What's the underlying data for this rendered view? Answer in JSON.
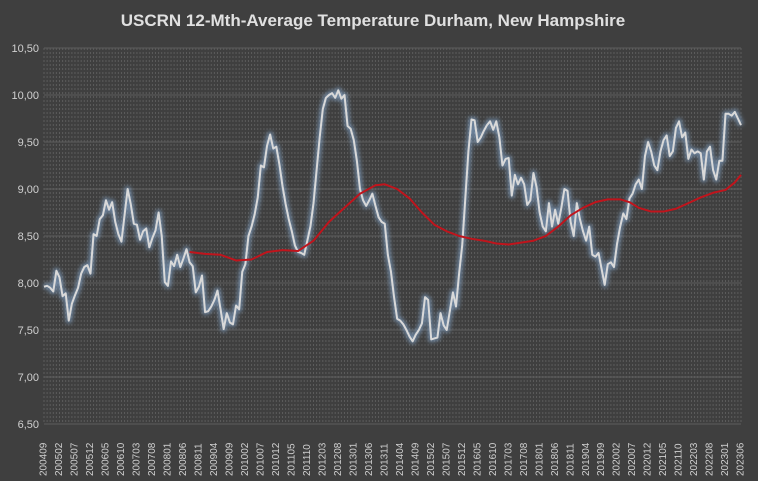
{
  "chart_data": {
    "type": "line",
    "title": "USCRN 12-Mth-Average Temperature Durham, New Hampshire",
    "xlabel": "",
    "ylabel": "",
    "ylim": [
      6.5,
      10.5
    ],
    "yticks": [
      "6,50",
      "7,00",
      "7,50",
      "8,00",
      "8,50",
      "9,00",
      "9,50",
      "10,00",
      "10,50"
    ],
    "ytick_values": [
      6.5,
      7.0,
      7.5,
      8.0,
      8.5,
      9.0,
      9.5,
      10.0,
      10.5
    ],
    "xticks": [
      "200409",
      "200502",
      "200507",
      "200512",
      "200605",
      "200610",
      "200703",
      "200708",
      "200801",
      "200806",
      "200811",
      "200904",
      "200909",
      "201002",
      "201007",
      "201012",
      "201105",
      "201110",
      "201203",
      "201208",
      "201301",
      "201306",
      "201311",
      "201404",
      "201409",
      "201502",
      "201507",
      "201512",
      "201605",
      "201610",
      "201703",
      "201708",
      "201801",
      "201806",
      "201811",
      "201904",
      "201909",
      "202002",
      "202007",
      "202012",
      "202105",
      "202110",
      "202203",
      "202208",
      "202301",
      "202306"
    ],
    "grid": true,
    "legend": "none",
    "colors": {
      "background": "#3f3f3f",
      "series_12mth": "#d9d9d9",
      "series_trend": "#c0141c",
      "glow": "#8fb8e6"
    },
    "series": [
      {
        "points": [
          [
            0,
            7.96
          ],
          [
            1,
            7.97
          ],
          [
            2,
            7.95
          ],
          [
            3,
            7.91
          ],
          [
            4,
            8.13
          ],
          [
            5,
            8.06
          ],
          [
            6,
            7.86
          ],
          [
            7,
            7.89
          ],
          [
            8,
            7.6
          ],
          [
            9,
            7.78
          ],
          [
            10,
            7.87
          ],
          [
            11,
            7.95
          ],
          [
            12,
            8.1
          ],
          [
            13,
            8.17
          ],
          [
            14,
            8.19
          ],
          [
            15,
            8.1
          ],
          [
            16,
            8.52
          ],
          [
            17,
            8.5
          ],
          [
            18,
            8.68
          ],
          [
            19,
            8.72
          ],
          [
            20,
            8.88
          ],
          [
            21,
            8.78
          ],
          [
            22,
            8.86
          ],
          [
            23,
            8.65
          ],
          [
            24,
            8.52
          ],
          [
            25,
            8.44
          ],
          [
            26,
            8.72
          ],
          [
            27,
            9.0
          ],
          [
            28,
            8.84
          ],
          [
            29,
            8.63
          ],
          [
            30,
            8.62
          ],
          [
            31,
            8.46
          ],
          [
            32,
            8.55
          ],
          [
            33,
            8.58
          ],
          [
            34,
            8.38
          ],
          [
            35,
            8.48
          ],
          [
            36,
            8.56
          ],
          [
            37,
            8.75
          ],
          [
            38,
            8.5
          ],
          [
            39,
            8.01
          ],
          [
            40,
            7.97
          ],
          [
            41,
            8.23
          ],
          [
            42,
            8.18
          ],
          [
            43,
            8.3
          ],
          [
            44,
            8.17
          ],
          [
            45,
            8.26
          ],
          [
            46,
            8.36
          ],
          [
            47,
            8.22
          ],
          [
            48,
            8.18
          ],
          [
            49,
            7.9
          ],
          [
            50,
            7.96
          ],
          [
            51,
            8.08
          ],
          [
            52,
            7.69
          ],
          [
            53,
            7.7
          ],
          [
            54,
            7.75
          ],
          [
            55,
            7.82
          ],
          [
            56,
            7.92
          ],
          [
            57,
            7.72
          ],
          [
            58,
            7.51
          ],
          [
            59,
            7.68
          ],
          [
            60,
            7.58
          ],
          [
            61,
            7.56
          ],
          [
            62,
            7.76
          ],
          [
            63,
            7.72
          ],
          [
            64,
            8.12
          ],
          [
            65,
            8.2
          ],
          [
            66,
            8.5
          ],
          [
            67,
            8.6
          ],
          [
            68,
            8.73
          ],
          [
            69,
            8.91
          ],
          [
            70,
            9.25
          ],
          [
            71,
            9.23
          ],
          [
            72,
            9.46
          ],
          [
            73,
            9.58
          ],
          [
            74,
            9.43
          ],
          [
            75,
            9.45
          ],
          [
            76,
            9.26
          ],
          [
            77,
            9.03
          ],
          [
            78,
            8.84
          ],
          [
            79,
            8.68
          ],
          [
            80,
            8.55
          ],
          [
            81,
            8.4
          ],
          [
            82,
            8.33
          ],
          [
            83,
            8.32
          ],
          [
            84,
            8.3
          ],
          [
            85,
            8.45
          ],
          [
            86,
            8.6
          ],
          [
            87,
            8.85
          ],
          [
            88,
            9.2
          ],
          [
            89,
            9.55
          ],
          [
            90,
            9.85
          ],
          [
            91,
            9.97
          ],
          [
            92,
            10.0
          ],
          [
            93,
            10.02
          ],
          [
            94,
            9.97
          ],
          [
            95,
            10.05
          ],
          [
            96,
            9.96
          ],
          [
            97,
            10.0
          ],
          [
            98,
            9.67
          ],
          [
            99,
            9.64
          ],
          [
            100,
            9.52
          ],
          [
            101,
            9.3
          ],
          [
            102,
            9.0
          ],
          [
            103,
            8.88
          ],
          [
            104,
            8.82
          ],
          [
            105,
            8.88
          ],
          [
            106,
            8.95
          ],
          [
            107,
            8.82
          ],
          [
            108,
            8.7
          ],
          [
            109,
            8.65
          ],
          [
            110,
            8.63
          ],
          [
            111,
            8.3
          ],
          [
            112,
            8.12
          ],
          [
            113,
            7.85
          ],
          [
            114,
            7.62
          ],
          [
            115,
            7.6
          ],
          [
            116,
            7.56
          ],
          [
            117,
            7.5
          ],
          [
            118,
            7.43
          ],
          [
            119,
            7.38
          ],
          [
            120,
            7.45
          ],
          [
            121,
            7.5
          ],
          [
            122,
            7.57
          ],
          [
            123,
            7.85
          ],
          [
            124,
            7.82
          ],
          [
            125,
            7.4
          ],
          [
            126,
            7.41
          ],
          [
            127,
            7.42
          ],
          [
            128,
            7.68
          ],
          [
            129,
            7.55
          ],
          [
            130,
            7.5
          ],
          [
            131,
            7.7
          ],
          [
            132,
            7.9
          ],
          [
            133,
            7.75
          ],
          [
            134,
            8.1
          ],
          [
            135,
            8.4
          ],
          [
            136,
            8.9
          ],
          [
            137,
            9.4
          ],
          [
            138,
            9.74
          ],
          [
            139,
            9.73
          ],
          [
            140,
            9.5
          ],
          [
            141,
            9.55
          ],
          [
            142,
            9.62
          ],
          [
            143,
            9.68
          ],
          [
            144,
            9.72
          ],
          [
            145,
            9.63
          ],
          [
            146,
            9.72
          ],
          [
            147,
            9.55
          ],
          [
            148,
            9.25
          ],
          [
            149,
            9.32
          ],
          [
            150,
            9.33
          ],
          [
            151,
            8.93
          ],
          [
            152,
            9.15
          ],
          [
            153,
            9.05
          ],
          [
            154,
            9.12
          ],
          [
            155,
            9.05
          ],
          [
            156,
            8.83
          ],
          [
            157,
            8.88
          ],
          [
            158,
            9.17
          ],
          [
            159,
            9.02
          ],
          [
            160,
            8.75
          ],
          [
            161,
            8.6
          ],
          [
            162,
            8.55
          ],
          [
            163,
            8.85
          ],
          [
            164,
            8.6
          ],
          [
            165,
            8.78
          ],
          [
            166,
            8.63
          ],
          [
            167,
            8.8
          ],
          [
            168,
            9.0
          ],
          [
            169,
            8.98
          ],
          [
            170,
            8.65
          ],
          [
            171,
            8.5
          ],
          [
            172,
            8.85
          ],
          [
            173,
            8.68
          ],
          [
            174,
            8.55
          ],
          [
            175,
            8.45
          ],
          [
            176,
            8.6
          ],
          [
            177,
            8.3
          ],
          [
            178,
            8.28
          ],
          [
            179,
            8.32
          ],
          [
            180,
            8.15
          ],
          [
            181,
            7.98
          ],
          [
            182,
            8.2
          ],
          [
            183,
            8.22
          ],
          [
            184,
            8.17
          ],
          [
            185,
            8.42
          ],
          [
            186,
            8.6
          ],
          [
            187,
            8.74
          ],
          [
            188,
            8.68
          ],
          [
            189,
            8.9
          ],
          [
            190,
            8.95
          ],
          [
            191,
            9.05
          ],
          [
            192,
            9.1
          ],
          [
            193,
            9.0
          ],
          [
            194,
            9.35
          ],
          [
            195,
            9.5
          ],
          [
            196,
            9.4
          ],
          [
            197,
            9.25
          ],
          [
            198,
            9.2
          ],
          [
            199,
            9.4
          ],
          [
            200,
            9.52
          ],
          [
            201,
            9.57
          ],
          [
            202,
            9.35
          ],
          [
            203,
            9.4
          ],
          [
            204,
            9.65
          ],
          [
            205,
            9.72
          ],
          [
            206,
            9.55
          ],
          [
            207,
            9.6
          ],
          [
            208,
            9.32
          ],
          [
            209,
            9.42
          ],
          [
            210,
            9.38
          ],
          [
            211,
            9.4
          ],
          [
            212,
            9.38
          ],
          [
            213,
            9.1
          ],
          [
            214,
            9.4
          ],
          [
            215,
            9.45
          ],
          [
            216,
            9.2
          ],
          [
            217,
            9.1
          ],
          [
            218,
            9.3
          ],
          [
            219,
            9.3
          ],
          [
            220,
            9.8
          ],
          [
            221,
            9.8
          ],
          [
            222,
            9.78
          ],
          [
            223,
            9.82
          ],
          [
            224,
            9.75
          ],
          [
            225,
            9.68
          ]
        ]
      },
      {
        "points": [
          [
            47,
            8.33
          ],
          [
            52,
            8.31
          ],
          [
            57,
            8.3
          ],
          [
            62,
            8.24
          ],
          [
            67,
            8.25
          ],
          [
            72,
            8.33
          ],
          [
            77,
            8.35
          ],
          [
            82,
            8.34
          ],
          [
            87,
            8.45
          ],
          [
            92,
            8.65
          ],
          [
            97,
            8.8
          ],
          [
            102,
            8.95
          ],
          [
            107,
            9.04
          ],
          [
            110,
            9.05
          ],
          [
            114,
            9.0
          ],
          [
            118,
            8.9
          ],
          [
            122,
            8.75
          ],
          [
            126,
            8.62
          ],
          [
            130,
            8.55
          ],
          [
            134,
            8.5
          ],
          [
            138,
            8.47
          ],
          [
            142,
            8.45
          ],
          [
            146,
            8.42
          ],
          [
            150,
            8.41
          ],
          [
            154,
            8.43
          ],
          [
            158,
            8.45
          ],
          [
            162,
            8.5
          ],
          [
            166,
            8.6
          ],
          [
            170,
            8.72
          ],
          [
            174,
            8.8
          ],
          [
            178,
            8.86
          ],
          [
            182,
            8.89
          ],
          [
            186,
            8.89
          ],
          [
            189,
            8.86
          ],
          [
            192,
            8.8
          ],
          [
            196,
            8.76
          ],
          [
            200,
            8.76
          ],
          [
            204,
            8.79
          ],
          [
            208,
            8.85
          ],
          [
            212,
            8.91
          ],
          [
            216,
            8.96
          ],
          [
            220,
            8.99
          ],
          [
            223,
            9.07
          ],
          [
            225,
            9.15
          ]
        ]
      }
    ]
  }
}
